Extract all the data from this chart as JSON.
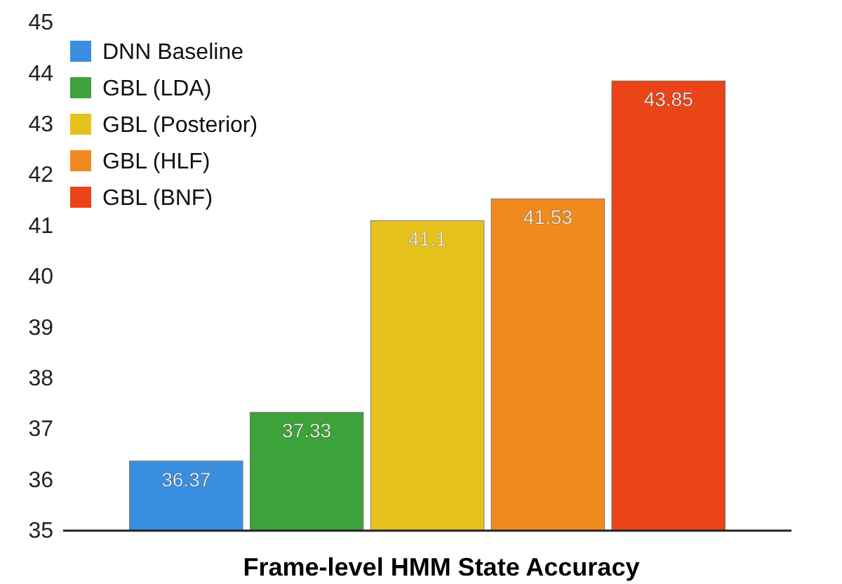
{
  "chart_data": {
    "type": "bar",
    "xlabel": "Frame-level HMM State Accuracy",
    "categories": [
      null
    ],
    "series": [
      {
        "name": "DNN Baseline",
        "color": "#3a8ee0",
        "values": [
          36.37
        ]
      },
      {
        "name": "GBL (LDA)",
        "color": "#3ca23a",
        "values": [
          37.33
        ]
      },
      {
        "name": "GBL (Posterior)",
        "color": "#e6c21e",
        "values": [
          41.1
        ]
      },
      {
        "name": "GBL (HLF)",
        "color": "#f08a1e",
        "values": [
          41.53
        ]
      },
      {
        "name": "GBL (BNF)",
        "color": "#ea4418",
        "values": [
          43.85
        ]
      }
    ],
    "ylim": [
      35,
      45
    ],
    "yticks": [
      35,
      36,
      37,
      38,
      39,
      40,
      41,
      42,
      43,
      44,
      45
    ],
    "data_labels": true,
    "legend": "top left"
  }
}
